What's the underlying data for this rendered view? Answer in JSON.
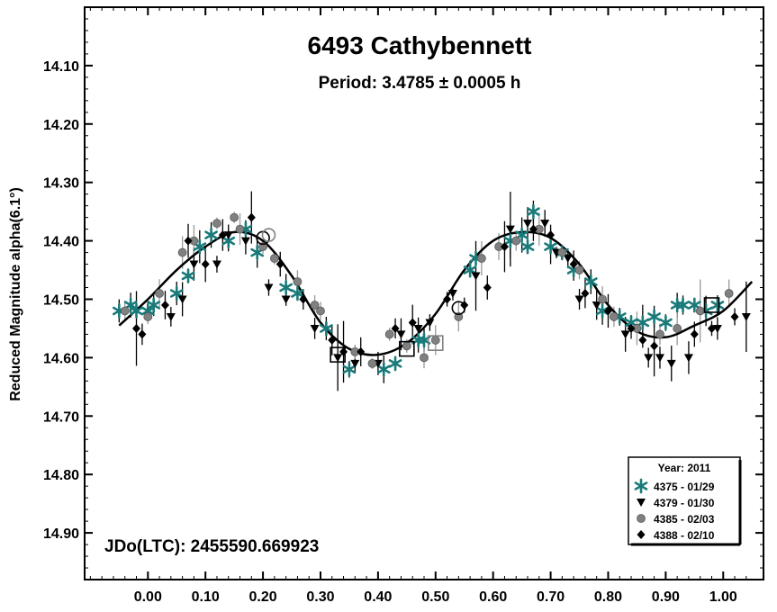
{
  "chart_data": {
    "type": "scatter",
    "title": "6493 Cathybennett",
    "subtitle": "Period: 3.4785 ± 0.0005 h",
    "ylabel": "Reduced Magnitude alpha(6.1°)",
    "xlabel": "",
    "annotation": "JDo(LTC): 2455590.669923",
    "xlim": [
      -0.11,
      1.07
    ],
    "ylim": [
      14.0,
      14.98
    ],
    "y_inverted": true,
    "x_ticks": [
      0.0,
      0.1,
      0.2,
      0.3,
      0.4,
      0.5,
      0.6,
      0.7,
      0.8,
      0.9,
      1.0
    ],
    "x_tick_labels": [
      "0.00",
      "0.10",
      "0.20",
      "0.30",
      "0.40",
      "0.50",
      "0.60",
      "0.70",
      "0.80",
      "0.90",
      "1.00"
    ],
    "y_ticks": [
      14.1,
      14.2,
      14.3,
      14.4,
      14.5,
      14.6,
      14.7,
      14.8,
      14.9
    ],
    "y_tick_labels": [
      "14.10",
      "14.20",
      "14.30",
      "14.40",
      "14.50",
      "14.60",
      "14.70",
      "14.80",
      "14.90"
    ],
    "legend": {
      "title": "Year: 2011",
      "position": "bottom-right",
      "entries": [
        {
          "label": "4375 - 01/29",
          "marker": "asterisk",
          "color": "#1a7a7a"
        },
        {
          "label": "4379 - 01/30",
          "marker": "triangle-down",
          "color": "#000000"
        },
        {
          "label": "4385 - 02/03",
          "marker": "circle",
          "color": "#808080"
        },
        {
          "label": "4388 - 02/10",
          "marker": "diamond",
          "color": "#000000"
        }
      ]
    },
    "fit_curve": {
      "x": [
        -0.05,
        0.0,
        0.05,
        0.1,
        0.15,
        0.2,
        0.25,
        0.3,
        0.35,
        0.4,
        0.45,
        0.5,
        0.55,
        0.6,
        0.65,
        0.7,
        0.75,
        0.8,
        0.85,
        0.9,
        0.95,
        1.0,
        1.05
      ],
      "y": [
        14.545,
        14.5,
        14.45,
        14.41,
        14.385,
        14.4,
        14.46,
        14.54,
        14.585,
        14.595,
        14.575,
        14.525,
        14.45,
        14.4,
        14.385,
        14.395,
        14.44,
        14.51,
        14.555,
        14.565,
        14.545,
        14.52,
        14.47
      ]
    },
    "series": [
      {
        "name": "4375 - 01/29",
        "marker": "asterisk",
        "color": "#1a7a7a",
        "x": [
          -0.05,
          -0.03,
          -0.02,
          0.0,
          0.01,
          0.05,
          0.07,
          0.09,
          0.11,
          0.14,
          0.17,
          0.19,
          0.24,
          0.26,
          0.31,
          0.35,
          0.41,
          0.43,
          0.47,
          0.48,
          0.56,
          0.57,
          0.63,
          0.65,
          0.66,
          0.67,
          0.7,
          0.72,
          0.74,
          0.77,
          0.79,
          0.82,
          0.84,
          0.86,
          0.88,
          0.9,
          0.92,
          0.93,
          0.95,
          0.97,
          0.99
        ],
        "y": [
          14.52,
          14.51,
          14.52,
          14.52,
          14.51,
          14.49,
          14.46,
          14.41,
          14.39,
          14.4,
          14.38,
          14.42,
          14.48,
          14.49,
          14.55,
          14.62,
          14.62,
          14.61,
          14.57,
          14.57,
          14.45,
          14.43,
          14.4,
          14.39,
          14.41,
          14.35,
          14.41,
          14.42,
          14.45,
          14.47,
          14.52,
          14.53,
          14.54,
          14.54,
          14.53,
          14.54,
          14.51,
          14.51,
          14.51,
          14.52,
          14.51
        ]
      },
      {
        "name": "4379 - 01/30",
        "marker": "triangle-down",
        "color": "#000000",
        "x": [
          0.04,
          0.06,
          0.08,
          0.12,
          0.14,
          0.17,
          0.21,
          0.24,
          0.29,
          0.33,
          0.36,
          0.4,
          0.44,
          0.47,
          0.49,
          0.53,
          0.57,
          0.63,
          0.66,
          0.69,
          0.71,
          0.73,
          0.75,
          0.78,
          0.83,
          0.87,
          0.89,
          0.91,
          0.94,
          0.99,
          1.04
        ],
        "y": [
          14.53,
          14.5,
          14.44,
          14.44,
          14.39,
          14.4,
          14.48,
          14.5,
          14.55,
          14.6,
          14.61,
          14.61,
          14.56,
          14.55,
          14.54,
          14.49,
          14.46,
          14.38,
          14.37,
          14.37,
          14.42,
          14.43,
          14.5,
          14.51,
          14.56,
          14.6,
          14.6,
          14.61,
          14.6,
          14.55,
          14.53
        ]
      },
      {
        "name": "4385 - 02/03",
        "marker": "circle",
        "color": "#808080",
        "x": [
          -0.04,
          0.0,
          0.02,
          0.06,
          0.08,
          0.12,
          0.15,
          0.16,
          0.2,
          0.22,
          0.26,
          0.29,
          0.3,
          0.36,
          0.39,
          0.42,
          0.45,
          0.48,
          0.5,
          0.54,
          0.58,
          0.61,
          0.64,
          0.68,
          0.72,
          0.75,
          0.79,
          0.81,
          0.85,
          0.89,
          0.92,
          0.96,
          1.01
        ],
        "y": [
          14.52,
          14.53,
          14.49,
          14.42,
          14.4,
          14.37,
          14.36,
          14.38,
          14.41,
          14.43,
          14.47,
          14.51,
          14.52,
          14.59,
          14.61,
          14.56,
          14.58,
          14.6,
          14.57,
          14.53,
          14.43,
          14.41,
          14.4,
          14.38,
          14.42,
          14.45,
          14.5,
          14.53,
          14.55,
          14.56,
          14.55,
          14.52,
          14.49
        ]
      },
      {
        "name": "4388 - 02/10",
        "marker": "diamond",
        "color": "#000000",
        "x": [
          -0.02,
          -0.01,
          0.03,
          0.07,
          0.1,
          0.13,
          0.18,
          0.23,
          0.27,
          0.32,
          0.34,
          0.37,
          0.43,
          0.46,
          0.52,
          0.55,
          0.59,
          0.62,
          0.67,
          0.7,
          0.74,
          0.76,
          0.8,
          0.84,
          0.86,
          0.88,
          0.95,
          0.98,
          1.02
        ],
        "y": [
          14.55,
          14.56,
          14.51,
          14.4,
          14.44,
          14.39,
          14.36,
          14.44,
          14.5,
          14.57,
          14.59,
          14.59,
          14.55,
          14.54,
          14.5,
          14.51,
          14.48,
          14.41,
          14.38,
          14.39,
          14.44,
          14.49,
          14.52,
          14.55,
          14.57,
          14.58,
          14.56,
          14.55,
          14.53
        ]
      }
    ]
  }
}
